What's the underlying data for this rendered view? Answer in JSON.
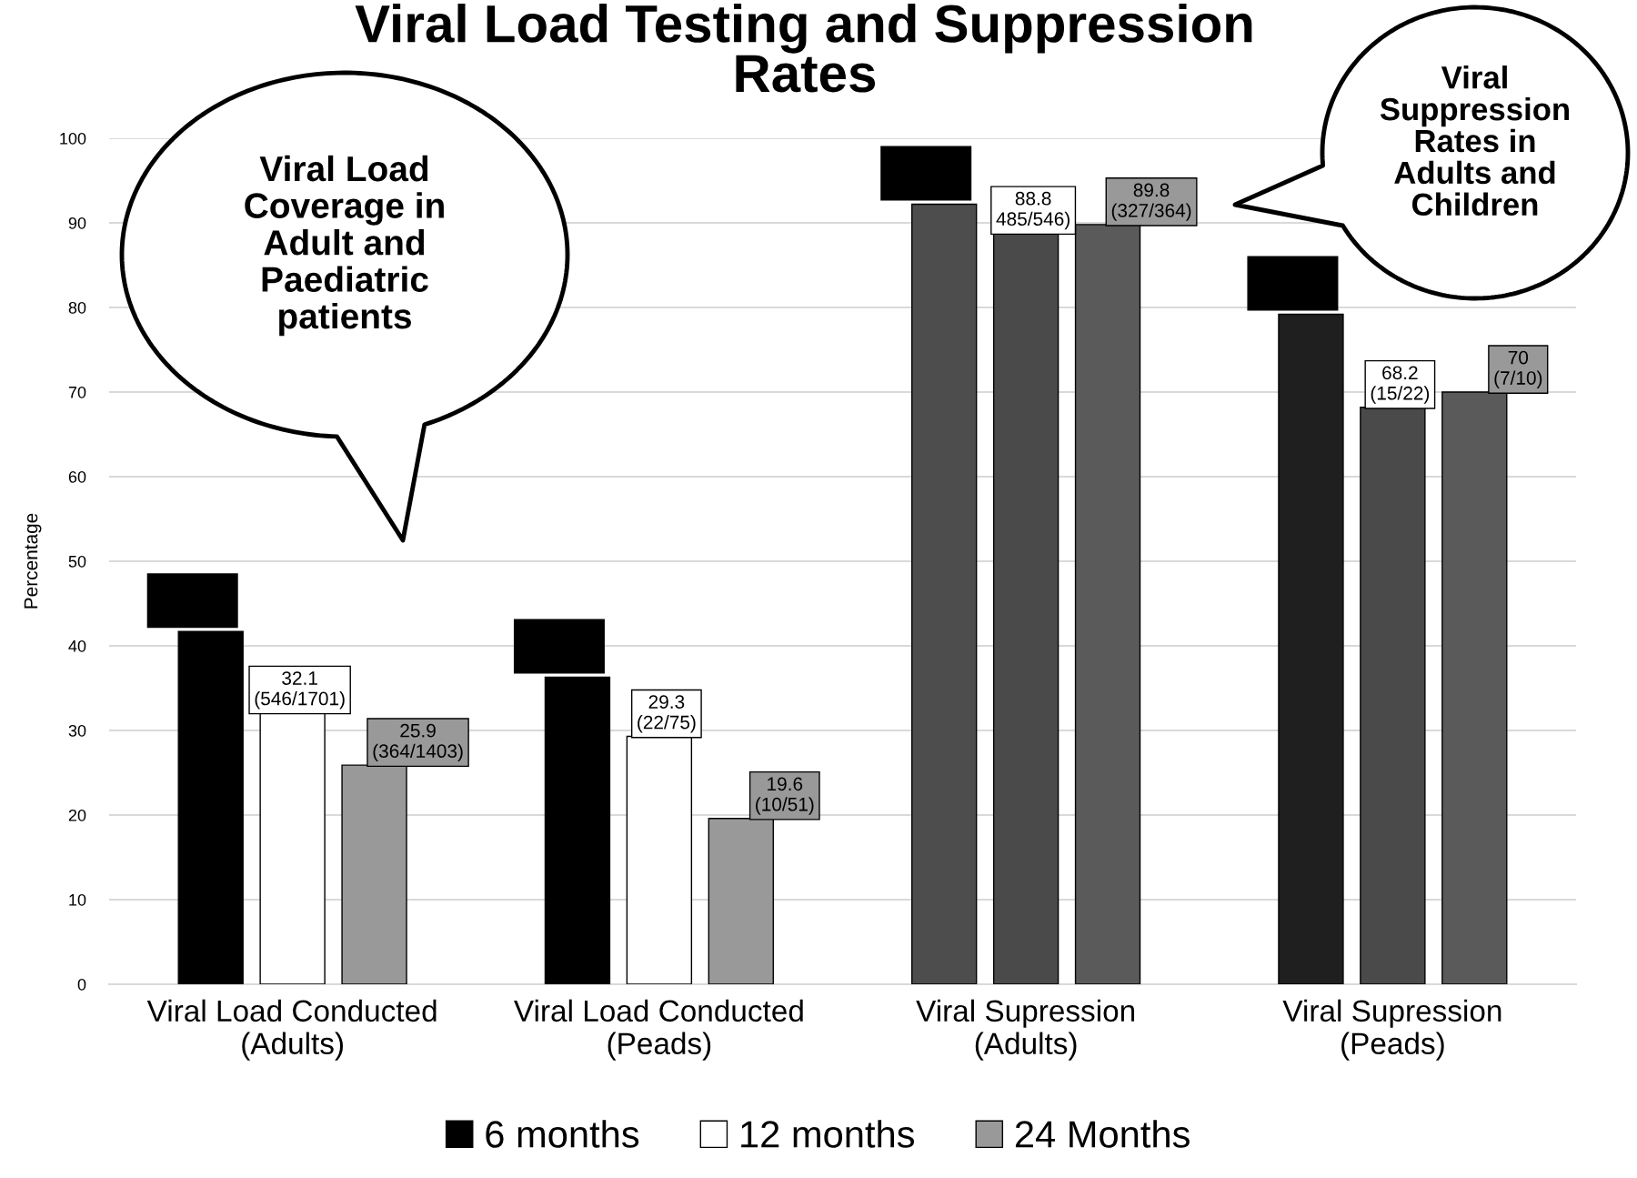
{
  "chart_data": {
    "type": "bar",
    "title": "Viral Load Testing and Suppression\nRates",
    "ylabel": "Percentage",
    "categories": [
      "Viral Load Conducted\n(Adults)",
      "Viral Load Conducted\n(Peads)",
      "Viral Supression\n(Adults)",
      "Viral Supression\n(Peads)"
    ],
    "series": [
      {
        "name": "6 months",
        "color": "#000000",
        "colors": [
          "#000000",
          "#000000",
          "#4d4d4d",
          "#1f1f1f"
        ],
        "values": [
          41.7,
          36.3,
          92.2,
          79.2
        ]
      },
      {
        "name": "12 months",
        "color": "#ffffff",
        "colors": [
          "#ffffff",
          "#ffffff",
          "#4a4a4a",
          "#4a4a4a"
        ],
        "values": [
          32.1,
          29.3,
          88.8,
          68.2
        ],
        "value_labels": [
          "32.1\n(546/1701)",
          "29.3\n(22/75)",
          "88.8\n485/546)",
          "68.2\n(15/22)"
        ]
      },
      {
        "name": "24 Months",
        "color": "#999999",
        "colors": [
          "#999999",
          "#999999",
          "#5a5a5a",
          "#5a5a5a"
        ],
        "values": [
          25.9,
          19.6,
          89.8,
          70
        ],
        "value_labels": [
          "25.9\n(364/1403)",
          "19.6\n(10/51)",
          "89.8\n(327/364)",
          "70\n(7/10)"
        ]
      }
    ],
    "ylim": [
      0,
      100
    ],
    "yticks": [
      0,
      10,
      20,
      30,
      40,
      50,
      60,
      70,
      80,
      90,
      100
    ],
    "grid": "y",
    "legend": "bottom",
    "annotations": [
      "Viral Load\nCoverage in\nAdult and\nPaediatric\npatients",
      "Viral\nSuppression\nRates in\nAdults and\nChildren"
    ]
  }
}
